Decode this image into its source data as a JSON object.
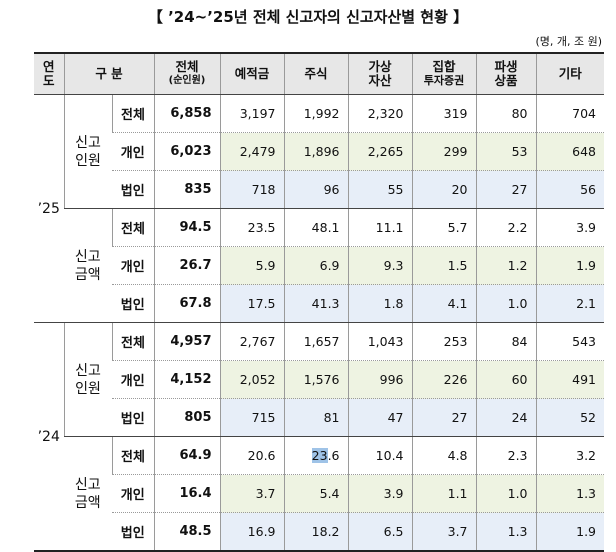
{
  "title": "【 ’24~’25년 전체 신고자의 신고자산별 현황 】",
  "unit": "(명, 개, 조 원)",
  "headers": {
    "year": [
      "연",
      "도"
    ],
    "category": "구 분",
    "total": "전체",
    "total_sub": "(순인원)",
    "deposit": "예적금",
    "stock": "주식",
    "virtual": [
      "가상",
      "자산"
    ],
    "collective": [
      "집합",
      "투자증권"
    ],
    "derivative": [
      "파생",
      "상품"
    ],
    "other": "기타"
  },
  "groups": {
    "people": [
      "신고",
      "인원"
    ],
    "amount": [
      "신고",
      "금액"
    ]
  },
  "types": {
    "all": "전체",
    "individual": "개인",
    "corporate": "법인"
  },
  "years": {
    "y25": "’25",
    "y24": "’24"
  },
  "rows": {
    "y25_people_all": [
      "6,858",
      "3,197",
      "1,992",
      "2,320",
      "319",
      "80",
      "704"
    ],
    "y25_people_ind": [
      "6,023",
      "2,479",
      "1,896",
      "2,265",
      "299",
      "53",
      "648"
    ],
    "y25_people_corp": [
      "835",
      "718",
      "96",
      "55",
      "20",
      "27",
      "56"
    ],
    "y25_amount_all": [
      "94.5",
      "23.5",
      "48.1",
      "11.1",
      "5.7",
      "2.2",
      "3.9"
    ],
    "y25_amount_ind": [
      "26.7",
      "5.9",
      "6.9",
      "9.3",
      "1.5",
      "1.2",
      "1.9"
    ],
    "y25_amount_corp": [
      "67.8",
      "17.5",
      "41.3",
      "1.8",
      "4.1",
      "1.0",
      "2.1"
    ],
    "y24_people_all": [
      "4,957",
      "2,767",
      "1,657",
      "1,043",
      "253",
      "84",
      "543"
    ],
    "y24_people_ind": [
      "4,152",
      "2,052",
      "1,576",
      "996",
      "226",
      "60",
      "491"
    ],
    "y24_people_corp": [
      "805",
      "715",
      "81",
      "47",
      "27",
      "24",
      "52"
    ],
    "y24_amount_all": [
      "64.9",
      "20.6",
      "23.6",
      "10.4",
      "4.8",
      "2.3",
      "3.2"
    ],
    "y24_amount_ind": [
      "16.4",
      "3.7",
      "5.4",
      "3.9",
      "1.1",
      "1.0",
      "1.3"
    ],
    "y24_amount_corp": [
      "48.5",
      "16.9",
      "18.2",
      "6.5",
      "3.7",
      "1.3",
      "1.9"
    ]
  },
  "highlight": {
    "prefix": "23",
    "suffix": ".6"
  }
}
